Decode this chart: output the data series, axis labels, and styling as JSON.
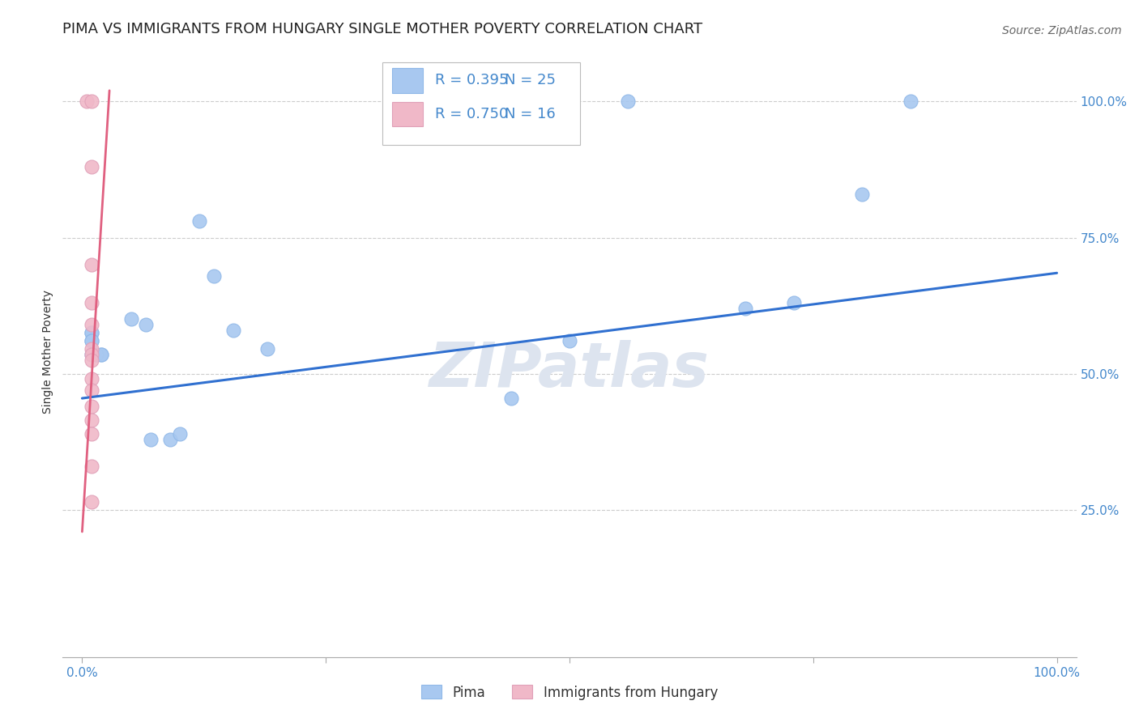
{
  "title": "PIMA VS IMMIGRANTS FROM HUNGARY SINGLE MOTHER POVERTY CORRELATION CHART",
  "source": "Source: ZipAtlas.com",
  "ylabel": "Single Mother Poverty",
  "xlim": [
    -0.02,
    1.02
  ],
  "ylim": [
    -0.02,
    1.1
  ],
  "ytick_labels": [
    "25.0%",
    "50.0%",
    "75.0%",
    "100.0%"
  ],
  "ytick_positions": [
    0.25,
    0.5,
    0.75,
    1.0
  ],
  "grid_color": "#cccccc",
  "background_color": "#ffffff",
  "pima_color": "#a8c8f0",
  "pima_edge_color": "#90b8e8",
  "hungary_color": "#f0b8c8",
  "hungary_edge_color": "#e0a0b8",
  "pima_line_color": "#3070d0",
  "hungary_line_color": "#e06080",
  "legend_color": "#4488cc",
  "legend_R_pima": "R = 0.395",
  "legend_N_pima": "N = 25",
  "legend_R_hungary": "R = 0.750",
  "legend_N_hungary": "N = 16",
  "pima_points_x": [
    0.01,
    0.01,
    0.01,
    0.01,
    0.01,
    0.015,
    0.015,
    0.02,
    0.02,
    0.05,
    0.065,
    0.07,
    0.09,
    0.1,
    0.12,
    0.135,
    0.155,
    0.19,
    0.44,
    0.5,
    0.56,
    0.68,
    0.73,
    0.8,
    0.85
  ],
  "pima_points_y": [
    0.575,
    0.575,
    0.56,
    0.56,
    0.535,
    0.535,
    0.535,
    0.535,
    0.535,
    0.6,
    0.59,
    0.38,
    0.38,
    0.39,
    0.78,
    0.68,
    0.58,
    0.545,
    0.455,
    0.56,
    1.0,
    0.62,
    0.63,
    0.83,
    1.0
  ],
  "hungary_points_x": [
    0.005,
    0.01,
    0.01,
    0.01,
    0.01,
    0.01,
    0.01,
    0.01,
    0.01,
    0.01,
    0.01,
    0.01,
    0.01,
    0.01,
    0.01,
    0.01
  ],
  "hungary_points_y": [
    1.0,
    1.0,
    0.88,
    0.7,
    0.63,
    0.59,
    0.545,
    0.535,
    0.525,
    0.49,
    0.47,
    0.44,
    0.415,
    0.39,
    0.33,
    0.265
  ],
  "pima_trendline_x": [
    0.0,
    1.0
  ],
  "pima_trendline_y": [
    0.455,
    0.685
  ],
  "hungary_trendline_x": [
    0.0,
    0.028
  ],
  "hungary_trendline_y": [
    0.21,
    1.02
  ],
  "watermark": "ZIPatlas",
  "watermark_color": "#dde4ef",
  "marker_size": 150,
  "title_fontsize": 13,
  "axis_label_fontsize": 10,
  "tick_fontsize": 11,
  "legend_fontsize": 13,
  "source_fontsize": 10
}
